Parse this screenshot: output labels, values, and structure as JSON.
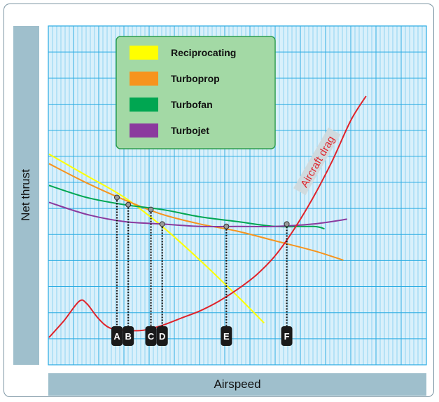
{
  "chart_data": {
    "type": "line",
    "ylabel": "Net thrust",
    "xlabel": "Airspeed",
    "xlim": [
      0,
      100
    ],
    "ylim": [
      0,
      100
    ],
    "grid": true,
    "legend_placement": "top-left",
    "series": [
      {
        "name": "Reciprocating",
        "color": "#ffff00",
        "x": [
          0,
          10,
          20,
          30,
          40,
          50,
          57
        ],
        "y": [
          76,
          67,
          58,
          46,
          32,
          17,
          6
        ]
      },
      {
        "name": "Turboprop",
        "color": "#f7941d",
        "x": [
          0,
          10,
          20,
          30,
          40,
          50,
          60,
          70,
          78
        ],
        "y": [
          72,
          64,
          57,
          51,
          47,
          44,
          40,
          36,
          32
        ]
      },
      {
        "name": "Turbofan",
        "color": "#00a651",
        "x": [
          0,
          10,
          20,
          30,
          40,
          50,
          60,
          70,
          73
        ],
        "y": [
          63,
          58,
          55,
          53,
          50,
          48,
          46,
          46,
          45
        ]
      },
      {
        "name": "Turbojet",
        "color": "#8b3a9e",
        "x": [
          0,
          10,
          20,
          30,
          40,
          50,
          60,
          70,
          79
        ],
        "y": [
          56,
          51,
          48,
          47,
          46,
          46,
          46,
          47,
          49
        ]
      },
      {
        "name": "Aircraft drag",
        "color": "#e0232a",
        "x": [
          0,
          4,
          8,
          10,
          13,
          16,
          20,
          25,
          30,
          35,
          40,
          45,
          50,
          55,
          60,
          65,
          70,
          75,
          80,
          84
        ],
        "y": [
          0,
          7,
          15,
          14,
          8,
          4,
          3,
          3,
          5,
          8,
          11,
          15,
          20,
          26,
          34,
          45,
          58,
          73,
          90,
          100
        ]
      }
    ],
    "drag_label": "Aircraft drag",
    "markers": [
      {
        "label": "A",
        "x": 18,
        "y": 58
      },
      {
        "label": "B",
        "x": 21,
        "y": 55
      },
      {
        "label": "C",
        "x": 27,
        "y": 53
      },
      {
        "label": "D",
        "x": 30,
        "y": 47
      },
      {
        "label": "E",
        "x": 47,
        "y": 46
      },
      {
        "label": "F",
        "x": 63,
        "y": 47
      }
    ],
    "colors": {
      "grid_bg": "#d9f0fb",
      "grid_line": "#29abe2",
      "legend_bg": "#a3d9a5",
      "legend_border": "#2e9e4f",
      "drag_label_bg": "#cfd8dc"
    }
  }
}
